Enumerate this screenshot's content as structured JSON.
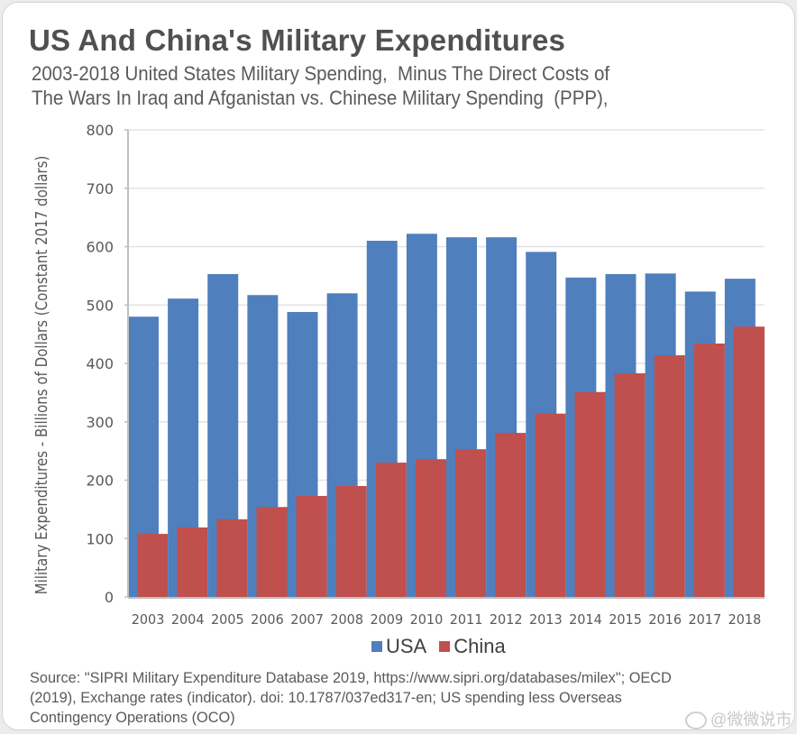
{
  "title": "US And China's Military Expenditures",
  "subtitle_line1": "2003-2018 United States Military Spending,  Minus The Direct Costs of",
  "subtitle_line2": "The Wars In Iraq and Afganistan vs. Chinese Military Spending  (PPP),",
  "source_line1": "Source: \"SIPRI Military Expenditure Database 2019, https://www.sipri.org/databases/milex\"; OECD",
  "source_line2": "(2019), Exchange rates (indicator). doi: 10.1787/037ed317-en; US spending less Overseas",
  "source_line3": "Contingency Operations (OCO)",
  "watermark": "@微微说市",
  "colors": {
    "usa": "#4f7fbd",
    "china": "#c0504d",
    "grid": "#e3e3e3",
    "axis": "#bfbfbf",
    "text": "#595959"
  },
  "chart_data": {
    "type": "bar",
    "title": "US And China's Military Expenditures",
    "xlabel": "",
    "ylabel": "Military Expenditures - Billions of Dollars (Constant 2017 dollars)",
    "ylim": [
      0,
      800
    ],
    "yticks": [
      0,
      100,
      200,
      300,
      400,
      500,
      600,
      700,
      800
    ],
    "grid": true,
    "legend_position": "bottom",
    "categories": [
      "2003",
      "2004",
      "2005",
      "2006",
      "2007",
      "2008",
      "2009",
      "2010",
      "2011",
      "2012",
      "2013",
      "2014",
      "2015",
      "2016",
      "2017",
      "2018"
    ],
    "series": [
      {
        "name": "USA",
        "values": [
          480,
          511,
          553,
          517,
          488,
          520,
          610,
          622,
          616,
          616,
          591,
          547,
          553,
          554,
          523,
          545
        ]
      },
      {
        "name": "China",
        "values": [
          108,
          119,
          133,
          154,
          173,
          190,
          230,
          236,
          253,
          281,
          314,
          351,
          383,
          414,
          434,
          463
        ]
      }
    ]
  }
}
